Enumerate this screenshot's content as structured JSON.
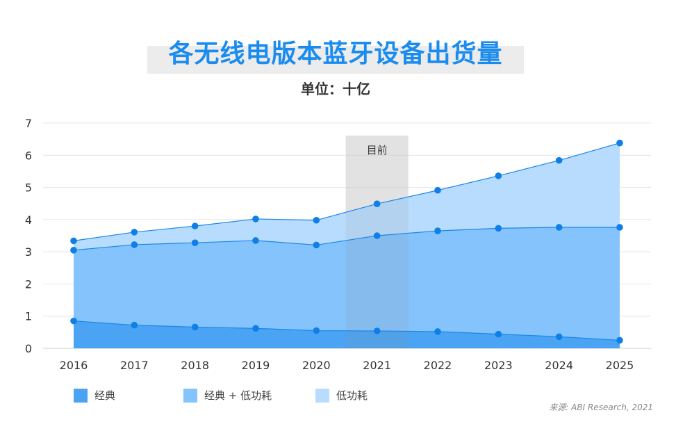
{
  "title": "各无线电版本蓝牙设备出货量",
  "subtitle": "单位：十亿",
  "source": "来源: ABI Research, 2021",
  "legend": [
    {
      "label": "经典",
      "color": "#4aa3f3"
    },
    {
      "label": "经典 + 低功耗",
      "color": "#84c3fb"
    },
    {
      "label": "低功耗",
      "color": "#b8dcfd"
    }
  ],
  "chart_data": {
    "type": "area",
    "stacked": true,
    "x": [
      "2016",
      "2017",
      "2018",
      "2019",
      "2020",
      "2021",
      "2022",
      "2023",
      "2024",
      "2025"
    ],
    "series": [
      {
        "name": "经典",
        "values": [
          0.85,
          0.72,
          0.66,
          0.62,
          0.55,
          0.54,
          0.52,
          0.44,
          0.36,
          0.25
        ],
        "color": "#4aa3f3"
      },
      {
        "name": "经典 + 低功耗",
        "values": [
          2.2,
          2.5,
          2.62,
          2.73,
          2.66,
          2.96,
          3.13,
          3.29,
          3.4,
          3.51
        ],
        "color": "#84c3fb"
      },
      {
        "name": "低功耗",
        "values": [
          0.29,
          0.39,
          0.52,
          0.67,
          0.77,
          0.99,
          1.26,
          1.63,
          2.08,
          2.62
        ],
        "color": "#b8dcfd"
      }
    ],
    "cumulative_totals": [
      [
        0.85,
        0.72,
        0.66,
        0.62,
        0.55,
        0.54,
        0.52,
        0.44,
        0.36,
        0.25
      ],
      [
        3.05,
        3.22,
        3.28,
        3.35,
        3.21,
        3.5,
        3.65,
        3.73,
        3.76,
        3.76
      ],
      [
        3.34,
        3.61,
        3.8,
        4.02,
        3.98,
        4.49,
        4.91,
        5.36,
        5.84,
        6.38
      ]
    ],
    "ylim": [
      0,
      7
    ],
    "yticks": [
      "0",
      "1",
      "2",
      "3",
      "4",
      "5",
      "6",
      "7"
    ],
    "grid": true,
    "highlight": {
      "x": "2021",
      "label": "目前"
    },
    "marker_color": "#0f7fe8",
    "legend_position": "bottom-left"
  }
}
